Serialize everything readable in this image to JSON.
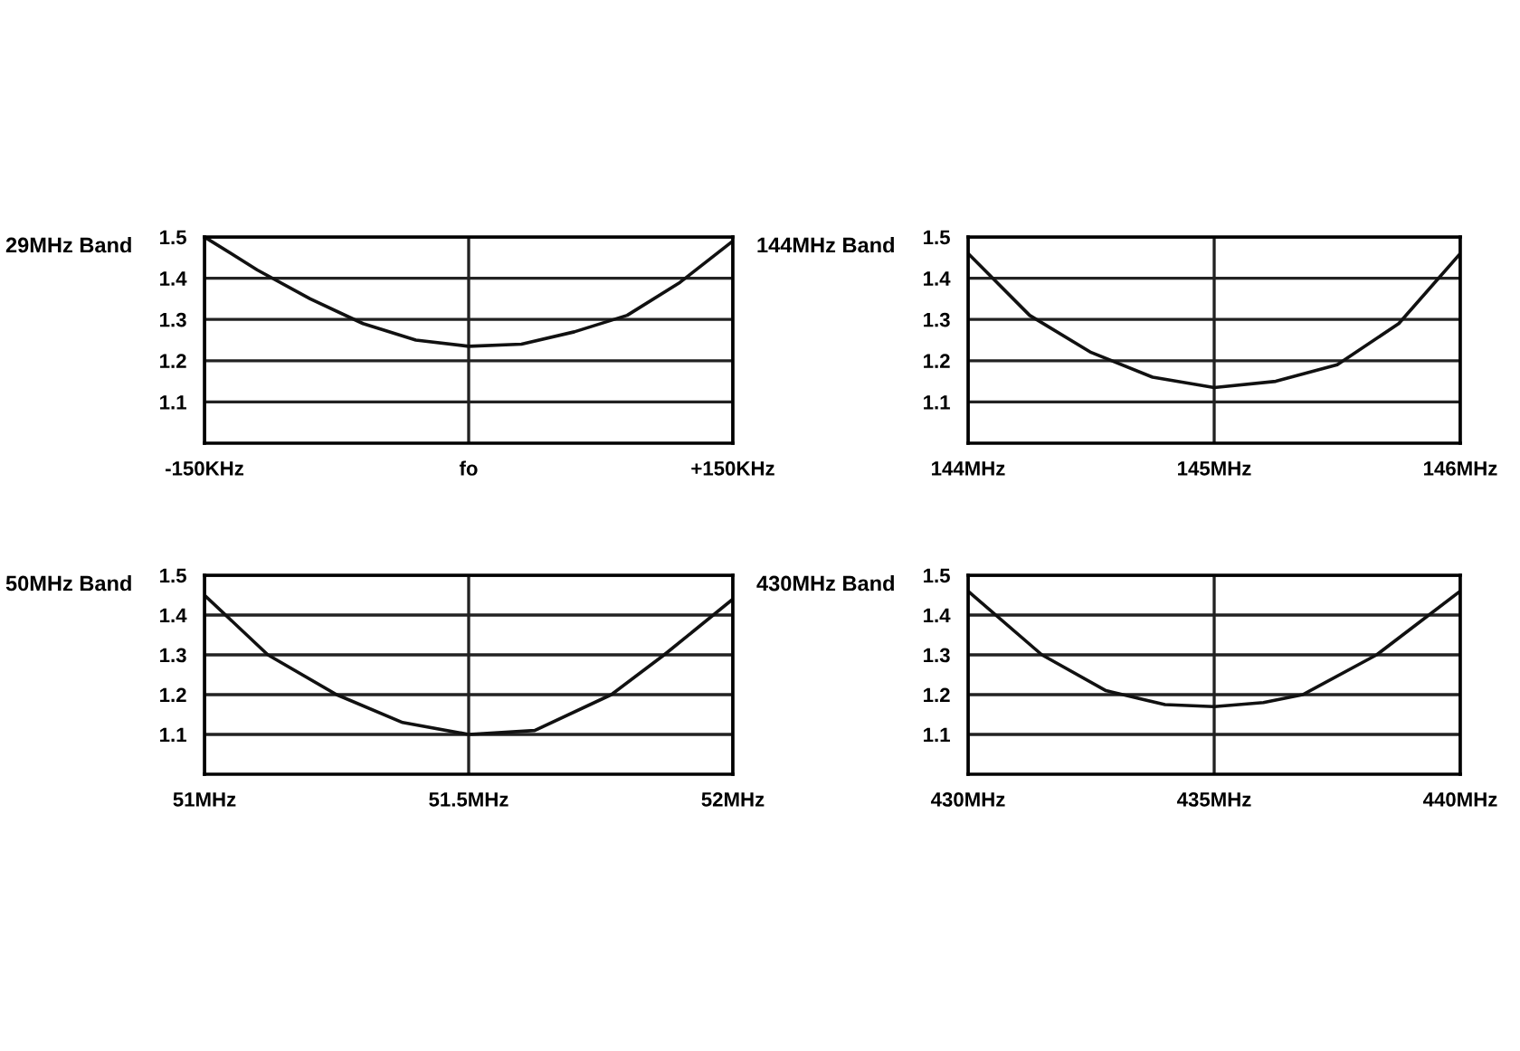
{
  "chart_data": [
    {
      "type": "line",
      "title": "29MHz Band",
      "x": [
        -150,
        -120,
        -90,
        -60,
        -30,
        0,
        30,
        60,
        90,
        120,
        150
      ],
      "series": [
        {
          "color": "#111111",
          "values": [
            1.5,
            1.42,
            1.35,
            1.29,
            1.25,
            1.235,
            1.24,
            1.27,
            1.31,
            1.39,
            1.49
          ]
        }
      ],
      "xlim": [
        -150,
        150
      ],
      "xticks": [
        {
          "value": -150,
          "label": "-150KHz"
        },
        {
          "value": 0,
          "label": "fo"
        },
        {
          "value": 150,
          "label": "+150KHz"
        }
      ],
      "ylim": [
        1.0,
        1.5
      ],
      "yticks": [
        1.1,
        1.2,
        1.3,
        1.4,
        1.5
      ],
      "grid": true
    },
    {
      "type": "line",
      "title": "144MHz Band",
      "x": [
        144,
        144.25,
        144.5,
        144.75,
        145,
        145.25,
        145.5,
        145.75,
        146
      ],
      "series": [
        {
          "color": "#111111",
          "values": [
            1.46,
            1.31,
            1.22,
            1.16,
            1.135,
            1.15,
            1.19,
            1.29,
            1.46
          ]
        }
      ],
      "xlim": [
        144,
        146
      ],
      "xticks": [
        {
          "value": 144,
          "label": "144MHz"
        },
        {
          "value": 145,
          "label": "145MHz"
        },
        {
          "value": 146,
          "label": "146MHz"
        }
      ],
      "ylim": [
        1.0,
        1.5
      ],
      "yticks": [
        1.1,
        1.2,
        1.3,
        1.4,
        1.5
      ],
      "grid": true
    },
    {
      "type": "line",
      "title": "50MHz Band",
      "x": [
        51,
        51.12,
        51.25,
        51.375,
        51.5,
        51.625,
        51.77,
        51.87,
        52
      ],
      "series": [
        {
          "color": "#111111",
          "values": [
            1.45,
            1.3,
            1.2,
            1.13,
            1.1,
            1.11,
            1.2,
            1.3,
            1.44
          ]
        }
      ],
      "xlim": [
        51,
        52
      ],
      "xticks": [
        {
          "value": 51,
          "label": "51MHz"
        },
        {
          "value": 51.5,
          "label": "51.5MHz"
        },
        {
          "value": 52,
          "label": "52MHz"
        }
      ],
      "ylim": [
        1.0,
        1.5
      ],
      "yticks": [
        1.1,
        1.2,
        1.3,
        1.4,
        1.5
      ],
      "grid": true
    },
    {
      "type": "line",
      "title": "430MHz Band",
      "x": [
        430,
        431.5,
        432.8,
        434,
        435,
        436,
        436.8,
        438.3,
        440
      ],
      "series": [
        {
          "color": "#111111",
          "values": [
            1.46,
            1.3,
            1.21,
            1.175,
            1.17,
            1.18,
            1.2,
            1.3,
            1.46
          ]
        }
      ],
      "xlim": [
        430,
        440
      ],
      "xticks": [
        {
          "value": 430,
          "label": "430MHz"
        },
        {
          "value": 435,
          "label": "435MHz"
        },
        {
          "value": 440,
          "label": "440MHz"
        }
      ],
      "ylim": [
        1.0,
        1.5
      ],
      "yticks": [
        1.1,
        1.2,
        1.3,
        1.4,
        1.5
      ],
      "grid": true
    }
  ]
}
